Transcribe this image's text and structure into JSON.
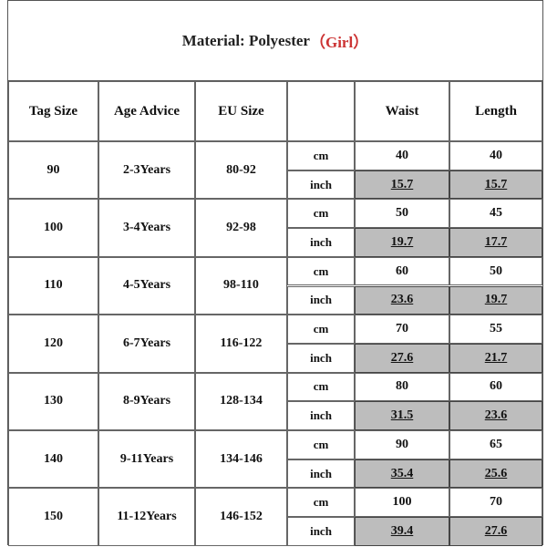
{
  "title": {
    "main": "Material: Polyester",
    "tag": "（Girl）"
  },
  "headers": [
    "Tag Size",
    "Age Advice",
    "EU Size",
    "",
    "Waist",
    "Length"
  ],
  "units": {
    "cm": "cm",
    "inch": "inch"
  },
  "rows": [
    {
      "tag": "90",
      "age": "2-3Years",
      "eu": "80-92",
      "waist_cm": "40",
      "length_cm": "40",
      "waist_in": "15.7",
      "length_in": "15.7"
    },
    {
      "tag": "100",
      "age": "3-4Years",
      "eu": "92-98",
      "waist_cm": "50",
      "length_cm": "45",
      "waist_in": "19.7",
      "length_in": "17.7"
    },
    {
      "tag": "110",
      "age": "4-5Years",
      "eu": "98-110",
      "waist_cm": "60",
      "length_cm": "50",
      "waist_in": "23.6",
      "length_in": "19.7"
    },
    {
      "tag": "120",
      "age": "6-7Years",
      "eu": "116-122",
      "waist_cm": "70",
      "length_cm": "55",
      "waist_in": "27.6",
      "length_in": "21.7"
    },
    {
      "tag": "130",
      "age": "8-9Years",
      "eu": "128-134",
      "waist_cm": "80",
      "length_cm": "60",
      "waist_in": "31.5",
      "length_in": "23.6"
    },
    {
      "tag": "140",
      "age": "9-11Years",
      "eu": "134-146",
      "waist_cm": "90",
      "length_cm": "65",
      "waist_in": "35.4",
      "length_in": "25.6"
    },
    {
      "tag": "150",
      "age": "11-12Years",
      "eu": "146-152",
      "waist_cm": "100",
      "length_cm": "70",
      "waist_in": "39.4",
      "length_in": "27.6"
    }
  ]
}
